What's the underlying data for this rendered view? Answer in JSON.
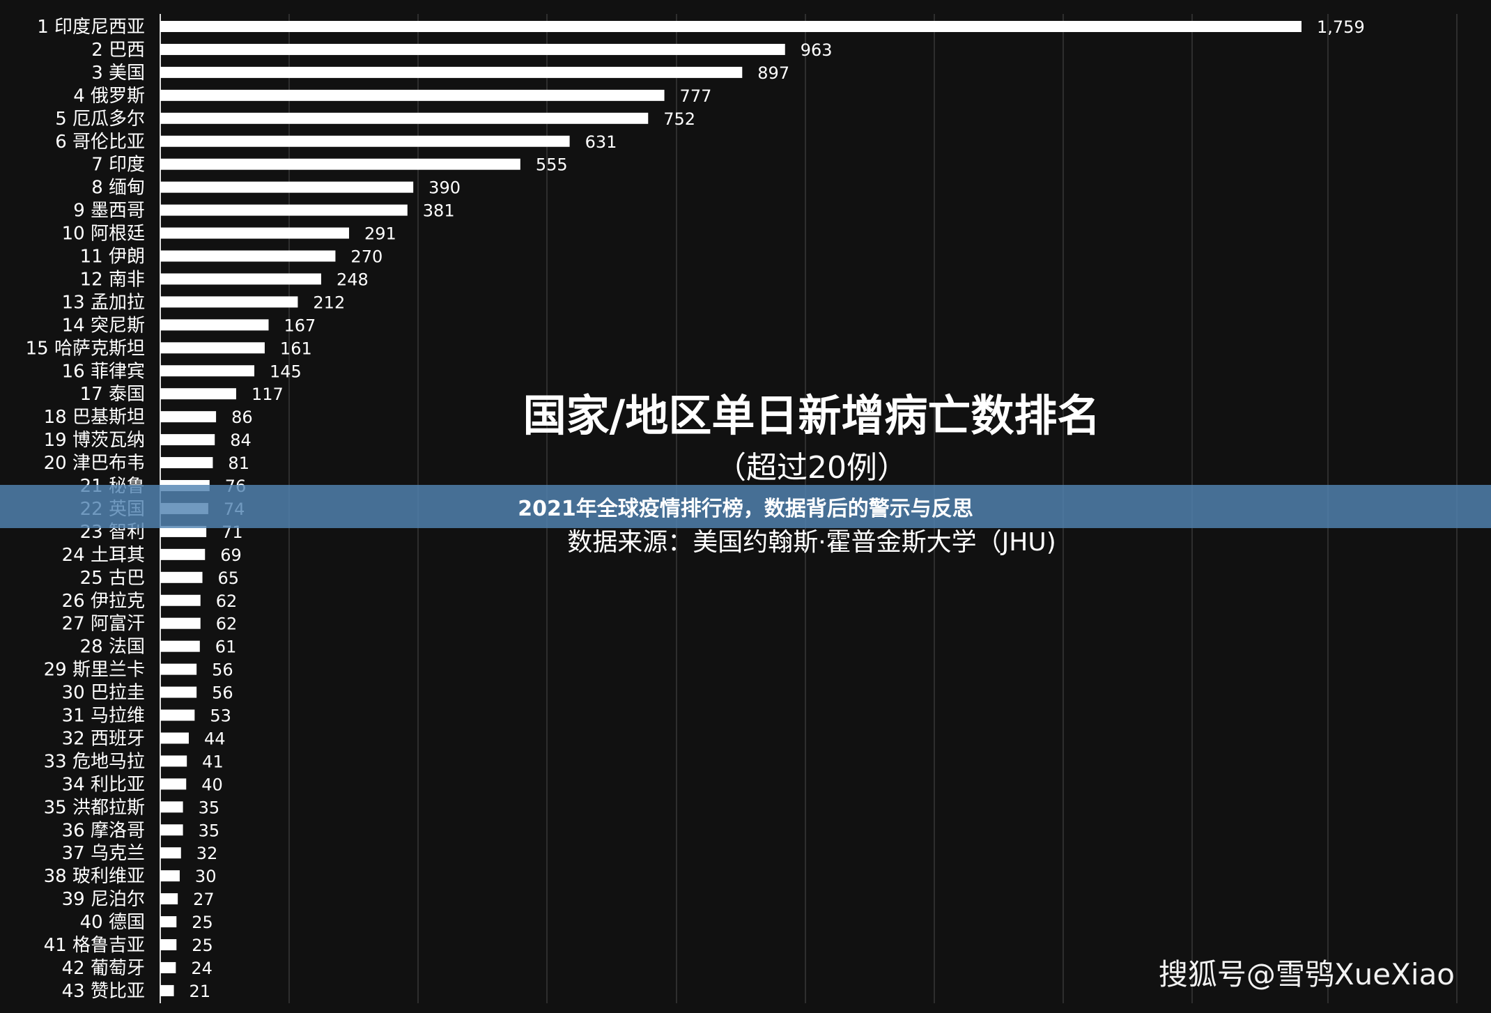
{
  "chart_data": {
    "type": "bar",
    "orientation": "horizontal",
    "title": "国家/地区单日新增病亡数排名",
    "subtitle": "（超过20例）",
    "source": "数据来源：美国约翰斯·霍普金斯大学（JHU)",
    "grid": true,
    "xlim": [
      0,
      1759
    ],
    "categories": [
      "1 印度尼西亚",
      "2 巴西",
      "3 美国",
      "4 俄罗斯",
      "5 厄瓜多尔",
      "6 哥伦比亚",
      "7 印度",
      "8 缅甸",
      "9 墨西哥",
      "10 阿根廷",
      "11 伊朗",
      "12 南非",
      "13 孟加拉",
      "14 突尼斯",
      "15 哈萨克斯坦",
      "16 菲律宾",
      "17 泰国",
      "18 巴基斯坦",
      "19 博茨瓦纳",
      "20 津巴布韦",
      "21 秘鲁",
      "22 英国",
      "23 智利",
      "24 土耳其",
      "25 古巴",
      "26 伊拉克",
      "27 阿富汗",
      "28 法国",
      "29 斯里兰卡",
      "30 巴拉圭",
      "31 马拉维",
      "32 西班牙",
      "33 危地马拉",
      "34 利比亚",
      "35 洪都拉斯",
      "36 摩洛哥",
      "37 乌克兰",
      "38 玻利维亚",
      "39 尼泊尔",
      "40 德国",
      "41 格鲁吉亚",
      "42 葡萄牙",
      "43 赞比亚"
    ],
    "values": [
      1759,
      963,
      897,
      777,
      752,
      631,
      555,
      390,
      381,
      291,
      270,
      248,
      212,
      167,
      161,
      145,
      117,
      86,
      84,
      81,
      76,
      74,
      71,
      69,
      65,
      62,
      62,
      61,
      56,
      56,
      53,
      44,
      41,
      40,
      35,
      35,
      32,
      30,
      27,
      25,
      25,
      24,
      21
    ],
    "value_labels": [
      "1,759",
      "963",
      "897",
      "777",
      "752",
      "631",
      "555",
      "390",
      "381",
      "291",
      "270",
      "248",
      "212",
      "167",
      "161",
      "145",
      "117",
      "86",
      "84",
      "81",
      "76",
      "74",
      "71",
      "69",
      "65",
      "62",
      "62",
      "61",
      "56",
      "56",
      "53",
      "44",
      "41",
      "40",
      "35",
      "35",
      "32",
      "30",
      "27",
      "25",
      "25",
      "24",
      "21"
    ]
  },
  "banner": {
    "text": "2021年全球疫情排行榜，数据背后的警示与反思"
  },
  "watermark": {
    "text": "搜狐号@雪鸮XueXiao"
  },
  "colors": {
    "background": "#111111",
    "bar": "#ffffff",
    "banner": "#5284b2"
  }
}
